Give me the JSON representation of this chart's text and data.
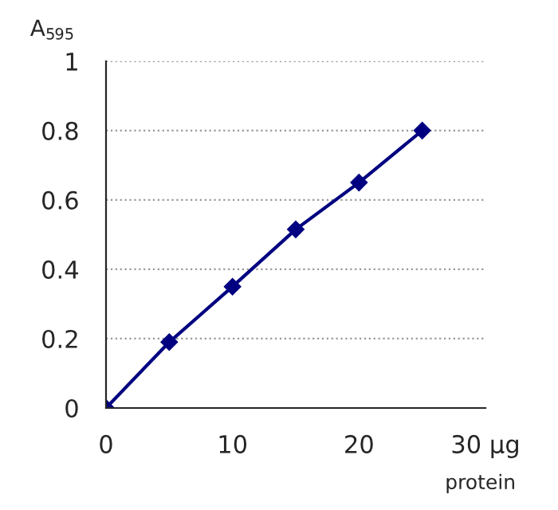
{
  "chart_data": {
    "type": "line",
    "ylabel": "A$_{595}$",
    "xlabel": "protein",
    "x": [
      0,
      5,
      10,
      15,
      20,
      25
    ],
    "series": [
      {
        "color": "#000080",
        "values": [
          0,
          0.19,
          0.35,
          0.515,
          0.65,
          0.8
        ]
      }
    ],
    "xlim": [
      0,
      30
    ],
    "xticks": [
      0,
      10,
      20,
      {
        "value": 30,
        "label": "30 μg"
      }
    ],
    "ylim": [
      0,
      1
    ],
    "yticks": [
      0,
      0.2,
      0.4,
      0.6,
      0.8,
      1
    ],
    "grid": "y",
    "marker": "diamond",
    "line_style": "solid"
  }
}
